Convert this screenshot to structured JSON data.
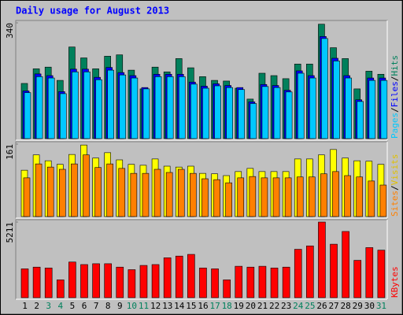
{
  "title": "Daily usage for August 2013",
  "categories": [
    "1",
    "2",
    "3",
    "4",
    "5",
    "6",
    "7",
    "8",
    "9",
    "10",
    "11",
    "12",
    "13",
    "14",
    "15",
    "16",
    "17",
    "18",
    "19",
    "20",
    "21",
    "22",
    "23",
    "24",
    "25",
    "26",
    "27",
    "28",
    "29",
    "30",
    "31"
  ],
  "category_colors": [
    "#000000",
    "#000000",
    "#00805c",
    "#00805c",
    "#000000",
    "#000000",
    "#000000",
    "#000000",
    "#000000",
    "#00805c",
    "#00805c",
    "#000000",
    "#000000",
    "#000000",
    "#000000",
    "#000000",
    "#00805c",
    "#00805c",
    "#000000",
    "#000000",
    "#000000",
    "#000000",
    "#000000",
    "#00805c",
    "#00805c",
    "#000000",
    "#000000",
    "#000000",
    "#000000",
    "#000000",
    "#00805c"
  ],
  "legend_separator": "/",
  "chart_data": [
    {
      "type": "bar",
      "ylim": [
        0,
        340
      ],
      "yticks": [
        340
      ],
      "series": [
        {
          "name": "Hits",
          "color": "#00805c",
          "values": [
            162,
            205,
            210,
            171,
            269,
            237,
            205,
            242,
            246,
            201,
            146,
            210,
            196,
            235,
            208,
            182,
            171,
            169,
            148,
            116,
            192,
            185,
            176,
            219,
            219,
            336,
            267,
            235,
            146,
            198,
            189
          ]
        },
        {
          "name": "Files",
          "color": "#0000ff",
          "values": [
            140,
            190,
            185,
            138,
            204,
            204,
            180,
            209,
            194,
            185,
            150,
            189,
            189,
            189,
            166,
            154,
            161,
            156,
            150,
            108,
            159,
            156,
            142,
            199,
            185,
            300,
            236,
            185,
            114,
            178,
            178
          ]
        },
        {
          "name": "Pages",
          "color": "#00c8ff",
          "values": [
            135,
            182,
            178,
            132,
            196,
            196,
            173,
            201,
            187,
            178,
            146,
            182,
            182,
            182,
            160,
            148,
            155,
            150,
            144,
            103,
            153,
            150,
            137,
            192,
            178,
            294,
            228,
            178,
            109,
            171,
            171
          ]
        }
      ]
    },
    {
      "type": "bar",
      "ylim": [
        0,
        161
      ],
      "yticks": [
        161
      ],
      "series": [
        {
          "name": "Visits",
          "color": "#ffff00",
          "values": [
            103,
            137,
            124,
            116,
            138,
            159,
            130,
            142,
            126,
            116,
            114,
            128,
            112,
            110,
            112,
            96,
            95,
            91,
            100,
            107,
            100,
            100,
            100,
            128,
            128,
            137,
            149,
            130,
            124,
            123,
            116
          ]
        },
        {
          "name": "Sites",
          "color": "#ff8000",
          "values": [
            86,
            117,
            110,
            105,
            117,
            137,
            109,
            117,
            107,
            96,
            96,
            105,
            98,
            105,
            96,
            84,
            82,
            75,
            86,
            89,
            86,
            86,
            86,
            88,
            88,
            95,
            100,
            91,
            88,
            79,
            70
          ]
        }
      ]
    },
    {
      "type": "bar",
      "ylim": [
        0,
        5211
      ],
      "yticks": [
        5211
      ],
      "series": [
        {
          "name": "KBytes",
          "color": "#ff0000",
          "values": [
            1989,
            2106,
            2048,
            1229,
            2457,
            2282,
            2340,
            2340,
            2106,
            1931,
            2223,
            2282,
            2750,
            2867,
            2984,
            2048,
            1989,
            1229,
            2165,
            2106,
            2165,
            2048,
            2106,
            3335,
            3569,
            5211,
            3686,
            4563,
            2574,
            3452,
            3276
          ]
        }
      ]
    }
  ]
}
